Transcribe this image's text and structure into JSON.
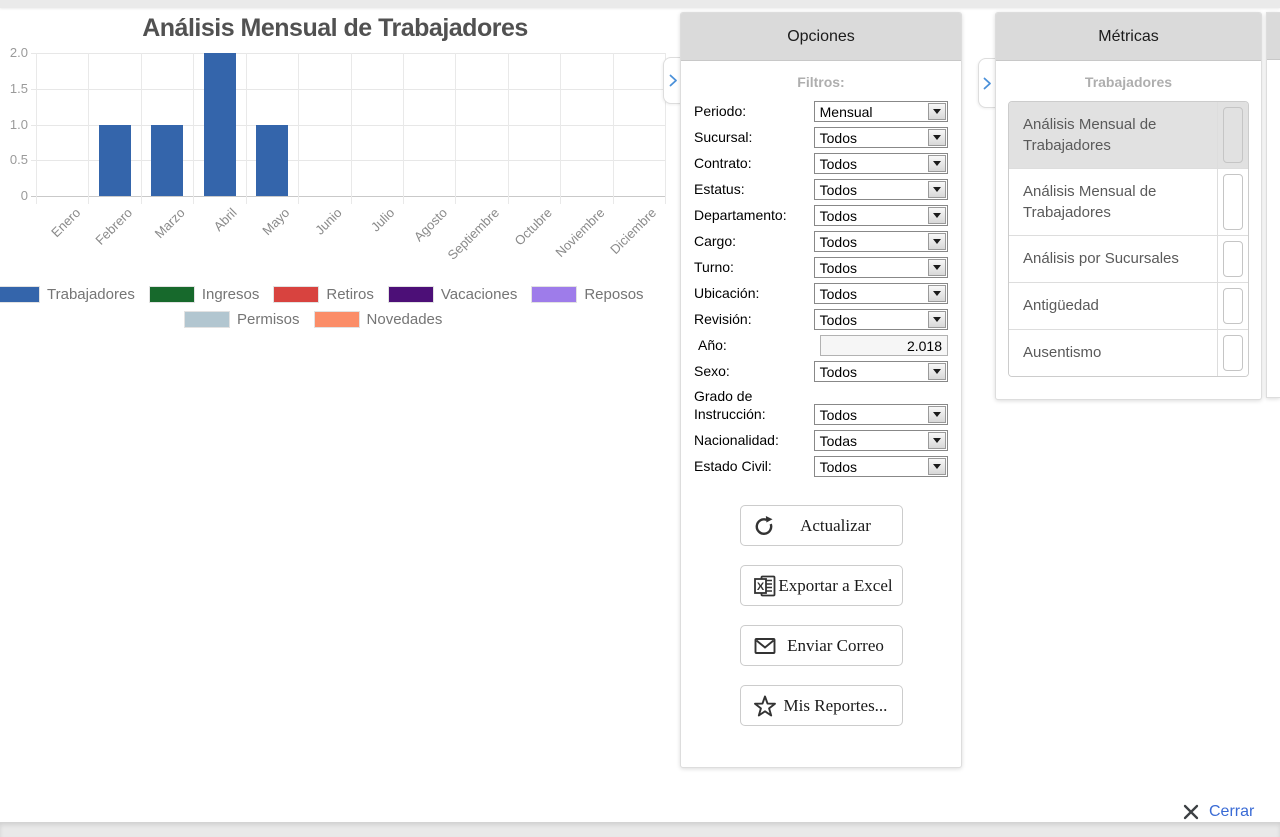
{
  "chart_data": {
    "type": "bar",
    "title": "Análisis Mensual de Trabajadores",
    "categories": [
      "Enero",
      "Febrero",
      "Marzo",
      "Abril",
      "Mayo",
      "Junio",
      "Julio",
      "Agosto",
      "Septiembre",
      "Octubre",
      "Noviembre",
      "Diciembre"
    ],
    "series": [
      {
        "name": "Trabajadores",
        "color": "#3465ab",
        "values": [
          0,
          1,
          1,
          2,
          1,
          0,
          0,
          0,
          0,
          0,
          0,
          0
        ]
      }
    ],
    "ylim": [
      0,
      2
    ],
    "ytick_values": [
      2,
      1.5,
      1,
      0.5,
      0
    ],
    "ytick_labels": [
      "2.0",
      "1.5",
      "1.0",
      "0.5",
      "0"
    ],
    "grid": "on",
    "legend_position": "bottom",
    "legend_rows": [
      [
        {
          "label": "Trabajadores",
          "color": "#3465ab"
        },
        {
          "label": "Ingresos",
          "color": "#17692c"
        },
        {
          "label": "Retiros",
          "color": "#d8433f"
        },
        {
          "label": "Vacaciones",
          "color": "#4c0f77"
        },
        {
          "label": "Reposos",
          "color": "#9e7cea"
        }
      ],
      [
        {
          "label": "Permisos",
          "color": "#b2c6d0"
        },
        {
          "label": "Novedades",
          "color": "#fb8d68"
        }
      ]
    ]
  },
  "options_panel": {
    "title": "Opciones",
    "filters_label": "Filtros:",
    "filters": [
      {
        "key": "periodo",
        "label": "Periodo:",
        "type": "select",
        "value": "Mensual"
      },
      {
        "key": "sucursal",
        "label": "Sucursal:",
        "type": "select",
        "value": "Todos"
      },
      {
        "key": "contrato",
        "label": "Contrato:",
        "type": "select",
        "value": "Todos"
      },
      {
        "key": "estatus",
        "label": "Estatus:",
        "type": "select",
        "value": "Todos"
      },
      {
        "key": "departamento",
        "label": "Departamento:",
        "type": "select",
        "value": "Todos"
      },
      {
        "key": "cargo",
        "label": "Cargo:",
        "type": "select",
        "value": "Todos"
      },
      {
        "key": "turno",
        "label": "Turno:",
        "type": "select",
        "value": "Todos"
      },
      {
        "key": "ubicacion",
        "label": "Ubicación:",
        "type": "select",
        "value": "Todos"
      },
      {
        "key": "revision",
        "label": "Revisión:",
        "type": "select",
        "value": "Todos"
      },
      {
        "key": "ano",
        "label": "Año:",
        "type": "input",
        "value": "2.018"
      },
      {
        "key": "sexo",
        "label": "Sexo:",
        "type": "select",
        "value": "Todos"
      },
      {
        "key": "grado-de-instruccion",
        "label": "Grado de Instrucción:",
        "type": "select",
        "value": "Todos"
      },
      {
        "key": "nacionalidad",
        "label": "Nacionalidad:",
        "type": "select",
        "value": "Todas"
      },
      {
        "key": "estado-civil",
        "label": "Estado Civil:",
        "type": "select",
        "value": "Todos"
      }
    ],
    "buttons": [
      {
        "key": "actualizar",
        "label": "Actualizar",
        "icon": "refresh-icon"
      },
      {
        "key": "exportar-excel",
        "label": "Exportar a Excel",
        "icon": "excel-icon"
      },
      {
        "key": "enviar-correo",
        "label": "Enviar Correo",
        "icon": "mail-icon"
      },
      {
        "key": "mis-reportes",
        "label": "Mis Reportes...",
        "icon": "star-icon"
      }
    ]
  },
  "metrics_panel": {
    "title": "Métricas",
    "group_label": "Trabajadores",
    "items": [
      {
        "label": "Análisis Mensual de Trabajadores",
        "selected": true
      },
      {
        "label": "Análisis Mensual de Trabajadores",
        "selected": false
      },
      {
        "label": "Análisis por Sucursales",
        "selected": false
      },
      {
        "label": "Antigüedad",
        "selected": false
      },
      {
        "label": "Ausentismo",
        "selected": false
      }
    ]
  },
  "footer": {
    "close_label": "Cerrar"
  }
}
